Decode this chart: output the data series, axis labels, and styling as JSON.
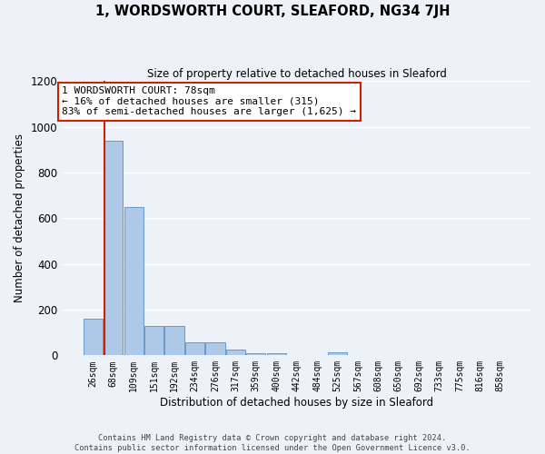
{
  "title": "1, WORDSWORTH COURT, SLEAFORD, NG34 7JH",
  "subtitle": "Size of property relative to detached houses in Sleaford",
  "xlabel": "Distribution of detached houses by size in Sleaford",
  "ylabel": "Number of detached properties",
  "bar_labels": [
    "26sqm",
    "68sqm",
    "109sqm",
    "151sqm",
    "192sqm",
    "234sqm",
    "276sqm",
    "317sqm",
    "359sqm",
    "400sqm",
    "442sqm",
    "484sqm",
    "525sqm",
    "567sqm",
    "608sqm",
    "650sqm",
    "692sqm",
    "733sqm",
    "775sqm",
    "816sqm",
    "858sqm"
  ],
  "bar_values": [
    160,
    940,
    650,
    130,
    130,
    55,
    55,
    25,
    10,
    10,
    0,
    0,
    15,
    0,
    0,
    0,
    0,
    0,
    0,
    0,
    0
  ],
  "bar_color": "#aec9e8",
  "bar_edge_color": "#6699cc",
  "background_color": "#edf2f8",
  "grid_color": "#ffffff",
  "vline_color": "#cc2200",
  "vline_pos": 0.575,
  "annotation_text": "1 WORDSWORTH COURT: 78sqm\n← 16% of detached houses are smaller (315)\n83% of semi-detached houses are larger (1,625) →",
  "annotation_box_color": "#ffffff",
  "annotation_box_edge": "#cc2200",
  "ylim": [
    0,
    1200
  ],
  "yticks": [
    0,
    200,
    400,
    600,
    800,
    1000,
    1200
  ],
  "footer_text": "Contains HM Land Registry data © Crown copyright and database right 2024.\nContains public sector information licensed under the Open Government Licence v3.0.",
  "figsize": [
    6.0,
    5.0
  ],
  "dpi": 100
}
